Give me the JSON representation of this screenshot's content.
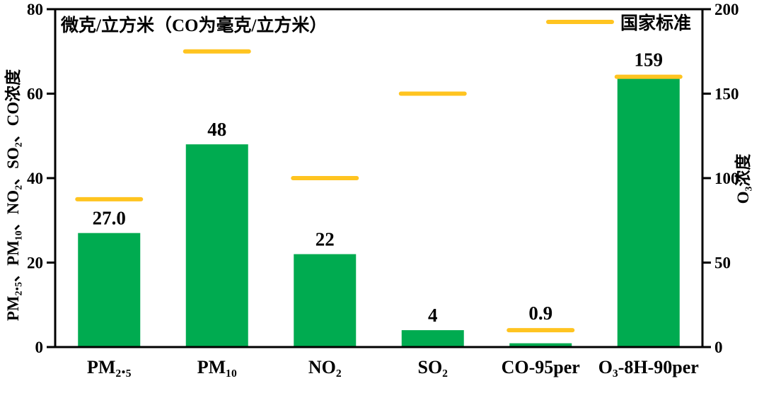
{
  "chart_data": {
    "type": "bar",
    "unit_annotation": "微克/立方米（CO为毫克/立方米）",
    "legend": {
      "label": "国家标准",
      "position": "top-right",
      "symbol": "line"
    },
    "categories": [
      {
        "label": "PM₂.₅",
        "value": 27.0,
        "value_label": "27.0",
        "standard": 35,
        "axis": "left"
      },
      {
        "label": "PM₁₀",
        "value": 48,
        "value_label": "48",
        "standard": 70,
        "axis": "left"
      },
      {
        "label": "NO₂",
        "value": 22,
        "value_label": "22",
        "standard": 40,
        "axis": "left"
      },
      {
        "label": "SO₂",
        "value": 4,
        "value_label": "4",
        "standard": 60,
        "axis": "left"
      },
      {
        "label": "CO-95per",
        "value": 0.9,
        "value_label": "0.9",
        "standard": 4,
        "axis": "left"
      },
      {
        "label": "O₃-8H-90per",
        "value": 159,
        "value_label": "159",
        "standard": 160,
        "axis": "right"
      }
    ],
    "left_axis": {
      "title": "PM₂.₅、PM₁₀、NO₂、SO₂、CO浓度",
      "min": 0,
      "max": 80,
      "ticks": [
        0,
        20,
        40,
        60,
        80
      ]
    },
    "right_axis": {
      "title": "O₃浓度",
      "min": 0,
      "max": 200,
      "ticks": [
        0,
        50,
        100,
        150,
        200
      ]
    },
    "colors": {
      "bar": "#00AB50",
      "standard_line": "#FFC420",
      "axis": "#000000",
      "text": "#000000",
      "background": "#FFFFFF"
    },
    "grid": false
  }
}
